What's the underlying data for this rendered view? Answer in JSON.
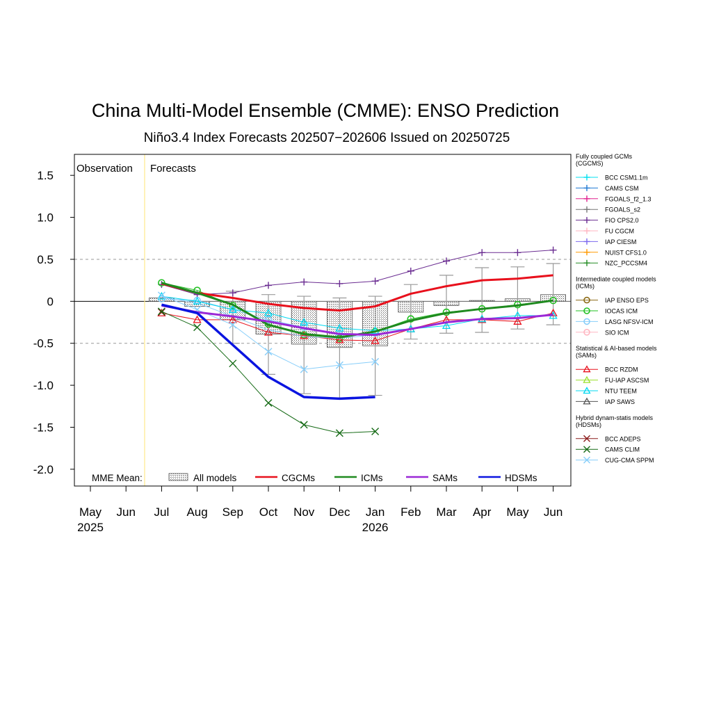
{
  "chart_data": {
    "type": "line",
    "title": "China Multi-Model Ensemble (CMME): ENSO Prediction",
    "subtitle": "Niño3.4 Index Forecasts 202507−202606 Issued on 20250725",
    "xlabel": "",
    "ylabel": "",
    "ylim": [
      -2.2,
      1.75
    ],
    "yticks": [
      1.5,
      1.0,
      0.5,
      0,
      -0.5,
      -1.0,
      -1.5,
      -2.0
    ],
    "ytick_labels": [
      "1.5",
      "1.0",
      "0.5",
      "0",
      "-0.5",
      "-1.0",
      "-1.5",
      "-2.0"
    ],
    "months": [
      "May",
      "Jun",
      "Jul",
      "Aug",
      "Sep",
      "Oct",
      "Nov",
      "Dec",
      "Jan",
      "Feb",
      "Mar",
      "Apr",
      "May",
      "Jun"
    ],
    "year_labels": [
      {
        "month_index": 0,
        "text": "2025"
      },
      {
        "month_index": 8,
        "text": "2026"
      }
    ],
    "observation_label": "Observation",
    "forecasts_label": "Forecasts",
    "observation": {
      "x": [
        0,
        1,
        2
      ],
      "values": [
        0.0,
        0.0,
        0.0
      ]
    },
    "reference_lines": [
      0.5,
      -0.5
    ],
    "forecast_start_index": 2,
    "all_models": {
      "bar_means": [
        0.04,
        -0.06,
        -0.22,
        -0.39,
        -0.51,
        -0.55,
        -0.53,
        -0.13,
        -0.05,
        0.01,
        0.03,
        0.08
      ],
      "whisker_low": [
        null,
        null,
        -0.5,
        -0.87,
        -1.1,
        -1.15,
        -1.12,
        -0.45,
        -0.38,
        -0.37,
        -0.33,
        -0.28
      ],
      "whisker_high": [
        null,
        null,
        0.12,
        0.08,
        0.06,
        0.04,
        0.06,
        0.2,
        0.31,
        0.4,
        0.41,
        0.45
      ]
    },
    "mme_means": [
      {
        "name": "CGCMs",
        "color": "#e8101c",
        "width": 3,
        "start": 2,
        "values": [
          0.21,
          0.1,
          0.04,
          -0.03,
          -0.08,
          -0.11,
          -0.06,
          0.09,
          0.18,
          0.25,
          0.27,
          0.31
        ]
      },
      {
        "name": "ICMs",
        "color": "#1f8a1f",
        "width": 3,
        "start": 2,
        "values": [
          0.22,
          0.1,
          -0.04,
          -0.28,
          -0.39,
          -0.43,
          -0.36,
          -0.23,
          -0.14,
          -0.09,
          -0.05,
          0.01
        ]
      },
      {
        "name": "SAMs",
        "color": "#9a28d6",
        "width": 3,
        "start": 2,
        "values": [
          -0.05,
          -0.13,
          -0.18,
          -0.24,
          -0.32,
          -0.39,
          -0.4,
          -0.33,
          -0.25,
          -0.21,
          -0.2,
          -0.16
        ]
      },
      {
        "name": "HDSMs",
        "color": "#0a14e0",
        "width": 3.5,
        "start": 2,
        "values": [
          -0.04,
          -0.14,
          -0.52,
          -0.9,
          -1.14,
          -1.16,
          -1.14
        ]
      }
    ],
    "models": [
      {
        "name": "FIO CPS2.0",
        "color": "#6a2c91",
        "marker": "plus",
        "start": 2,
        "values": [
          0.2,
          0.08,
          0.1,
          0.19,
          0.23,
          0.21,
          0.24,
          0.36,
          0.48,
          0.58,
          0.58,
          0.61
        ]
      },
      {
        "name": "IOCAS ICM",
        "color": "#22c022",
        "marker": "circle",
        "start": 2,
        "values": [
          0.22,
          0.13,
          -0.05,
          -0.27,
          -0.4,
          -0.44,
          -0.36,
          -0.21,
          -0.13,
          -0.09,
          -0.04,
          0.01
        ]
      },
      {
        "name": "LASG NFSV-ICM",
        "color": "#87cefa",
        "marker": "circle",
        "start": 2,
        "values": [
          0.03,
          0.01,
          -0.1,
          -0.22,
          -0.31,
          -0.4,
          -0.38,
          null,
          null,
          null,
          null,
          null
        ]
      },
      {
        "name": "BCC RZDM",
        "color": "#e8101c",
        "marker": "triangle",
        "start": 2,
        "values": [
          -0.14,
          -0.22,
          -0.22,
          -0.37,
          -0.41,
          -0.46,
          -0.47,
          -0.33,
          -0.22,
          -0.22,
          -0.24,
          -0.14
        ]
      },
      {
        "name": "NTU TEEM",
        "color": "#00d8f0",
        "marker": "triangle",
        "start": 2,
        "values": [
          0.06,
          0.0,
          -0.1,
          -0.14,
          -0.25,
          -0.32,
          -0.35,
          -0.33,
          -0.29,
          -0.21,
          -0.17,
          -0.17
        ]
      },
      {
        "name": "BCC ADEPS",
        "color": "#8b1a1a",
        "marker": "x",
        "start": 2,
        "values": [
          -0.13,
          null,
          null,
          null,
          null,
          null,
          null,
          null,
          null,
          null,
          null,
          null
        ]
      },
      {
        "name": "CAMS CLIM",
        "color": "#156a15",
        "marker": "x",
        "start": 2,
        "values": [
          -0.12,
          -0.31,
          -0.74,
          -1.21,
          -1.47,
          -1.57,
          -1.55
        ]
      },
      {
        "name": "CUG-CMA SPPM",
        "color": "#87cefa",
        "marker": "x",
        "start": 2,
        "values": [
          0.07,
          -0.1,
          -0.28,
          -0.6,
          -0.81,
          -0.76,
          -0.72
        ]
      },
      {
        "name": "LASG NFSV-ICM line",
        "color": "#87cefa",
        "marker": "none",
        "start": 2,
        "values": [
          0.05,
          -0.02,
          -0.18,
          -0.34,
          -0.42,
          -0.44,
          -0.4
        ]
      }
    ],
    "legend": {
      "placement": "right",
      "groups": [
        {
          "title": "Fully coupled GCMs\n(CGCMS)",
          "items": [
            {
              "name": "BCC CSM1.1m",
              "color": "#00e0f0",
              "marker": "plus"
            },
            {
              "name": "CAMS CSM",
              "color": "#1e78d2",
              "marker": "plus"
            },
            {
              "name": "FGOALS_f2_1.3",
              "color": "#e0208e",
              "marker": "plus"
            },
            {
              "name": "FGOALS_s2",
              "color": "#777777",
              "marker": "plus"
            },
            {
              "name": "FIO CPS2.0",
              "color": "#6a2c91",
              "marker": "plus"
            },
            {
              "name": "FU CGCM",
              "color": "#ffb6c1",
              "marker": "plus"
            },
            {
              "name": "IAP CIESM",
              "color": "#7b68ee",
              "marker": "plus"
            },
            {
              "name": "NUIST CFS1.0",
              "color": "#ff9900",
              "marker": "plus"
            },
            {
              "name": "NZC_PCCSM4",
              "color": "#228b22",
              "marker": "plus"
            }
          ]
        },
        {
          "title": "Intermediate coupled models\n(ICMs)",
          "items": [
            {
              "name": "IAP ENSO EPS",
              "color": "#8b6914",
              "marker": "circle"
            },
            {
              "name": "IOCAS ICM",
              "color": "#22c022",
              "marker": "circle"
            },
            {
              "name": "LASG NFSV-ICM",
              "color": "#87cefa",
              "marker": "circle"
            },
            {
              "name": "SIO ICM",
              "color": "#ffb6c1",
              "marker": "circle"
            }
          ]
        },
        {
          "title": "Statistical & AI-based models\n(SAMs)",
          "items": [
            {
              "name": "BCC RZDM",
              "color": "#e8101c",
              "marker": "triangle"
            },
            {
              "name": "FU-IAP ASCSM",
              "color": "#9ae02a",
              "marker": "triangle"
            },
            {
              "name": "NTU TEEM",
              "color": "#00d8f0",
              "marker": "triangle"
            },
            {
              "name": "IAP SAWS",
              "color": "#555555",
              "marker": "triangle"
            }
          ]
        },
        {
          "title": "Hybrid dynam-statis models\n(HDSMs)",
          "items": [
            {
              "name": "BCC ADEPS",
              "color": "#8b1a1a",
              "marker": "x"
            },
            {
              "name": "CAMS CLIM",
              "color": "#156a15",
              "marker": "x"
            },
            {
              "name": "CUG-CMA SPPM",
              "color": "#87cefa",
              "marker": "x"
            }
          ]
        }
      ]
    },
    "bottom_legend": {
      "label": "MME Mean:",
      "items": [
        {
          "name": "All models",
          "kind": "hatched-box"
        },
        {
          "name": "CGCMs",
          "color": "#e8101c"
        },
        {
          "name": "ICMs",
          "color": "#1f8a1f"
        },
        {
          "name": "SAMs",
          "color": "#9a28d6"
        },
        {
          "name": "HDSMs",
          "color": "#0a14e0"
        }
      ]
    }
  }
}
